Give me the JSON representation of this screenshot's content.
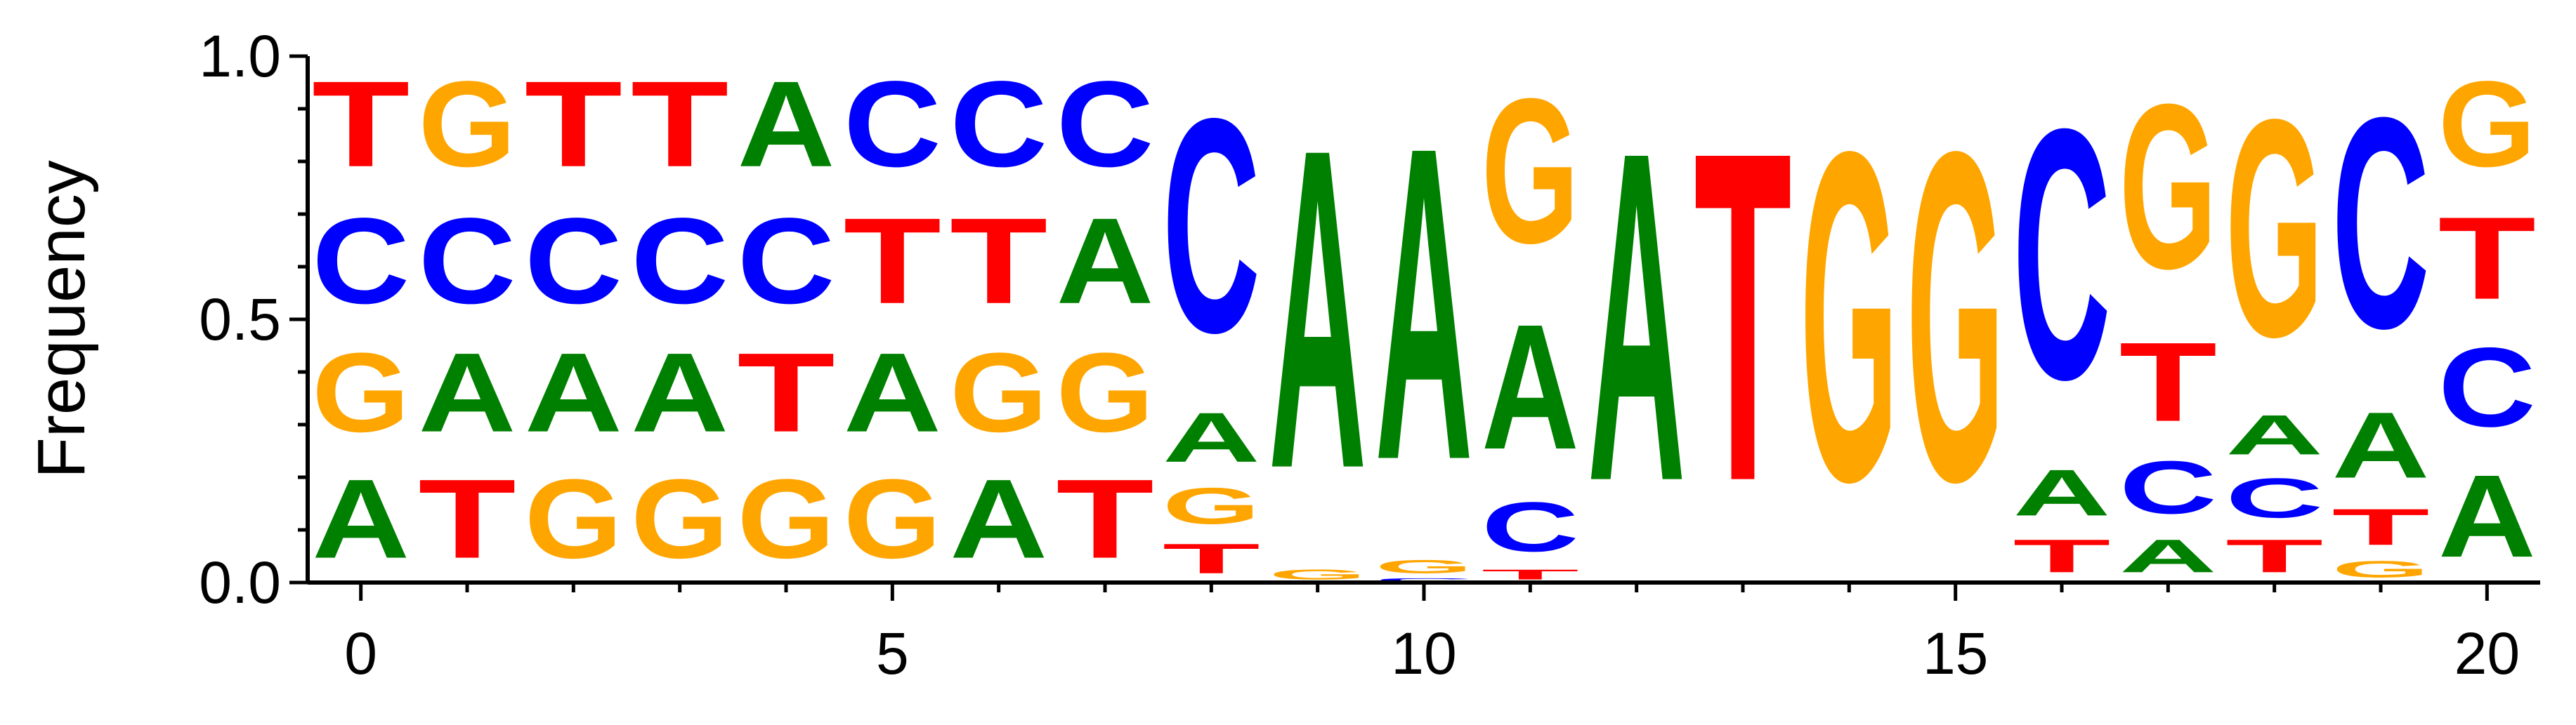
{
  "chart_data": {
    "type": "sequence_logo",
    "ylabel": "Frequency",
    "xlabel": "",
    "ylim": [
      0,
      1
    ],
    "xlim": [
      -0.5,
      20.5
    ],
    "y_ticks": [
      "0.0",
      "0.5",
      "1.0"
    ],
    "y_tick_values": [
      0,
      0.5,
      1
    ],
    "x_ticks": [
      "0",
      "5",
      "10",
      "15",
      "20"
    ],
    "x_tick_values": [
      0,
      5,
      10,
      15,
      20
    ],
    "colors": {
      "A": "#008000",
      "C": "#0000ff",
      "G": "#ffa500",
      "T": "#ff0000"
    },
    "positions": [
      {
        "pos": 0,
        "letters": [
          {
            "base": "A",
            "freq": 0.24
          },
          {
            "base": "G",
            "freq": 0.24
          },
          {
            "base": "C",
            "freq": 0.26
          },
          {
            "base": "T",
            "freq": 0.26
          }
        ]
      },
      {
        "pos": 1,
        "letters": [
          {
            "base": "T",
            "freq": 0.24
          },
          {
            "base": "A",
            "freq": 0.24
          },
          {
            "base": "C",
            "freq": 0.26
          },
          {
            "base": "G",
            "freq": 0.26
          }
        ]
      },
      {
        "pos": 2,
        "letters": [
          {
            "base": "G",
            "freq": 0.24
          },
          {
            "base": "A",
            "freq": 0.24
          },
          {
            "base": "C",
            "freq": 0.26
          },
          {
            "base": "T",
            "freq": 0.26
          }
        ]
      },
      {
        "pos": 3,
        "letters": [
          {
            "base": "G",
            "freq": 0.24
          },
          {
            "base": "A",
            "freq": 0.24
          },
          {
            "base": "C",
            "freq": 0.26
          },
          {
            "base": "T",
            "freq": 0.26
          }
        ]
      },
      {
        "pos": 4,
        "letters": [
          {
            "base": "G",
            "freq": 0.24
          },
          {
            "base": "T",
            "freq": 0.24
          },
          {
            "base": "C",
            "freq": 0.26
          },
          {
            "base": "A",
            "freq": 0.26
          }
        ]
      },
      {
        "pos": 5,
        "letters": [
          {
            "base": "G",
            "freq": 0.24
          },
          {
            "base": "A",
            "freq": 0.24
          },
          {
            "base": "T",
            "freq": 0.26
          },
          {
            "base": "C",
            "freq": 0.26
          }
        ]
      },
      {
        "pos": 6,
        "letters": [
          {
            "base": "A",
            "freq": 0.24
          },
          {
            "base": "G",
            "freq": 0.24
          },
          {
            "base": "T",
            "freq": 0.26
          },
          {
            "base": "C",
            "freq": 0.26
          }
        ]
      },
      {
        "pos": 7,
        "letters": [
          {
            "base": "T",
            "freq": 0.24
          },
          {
            "base": "G",
            "freq": 0.24
          },
          {
            "base": "A",
            "freq": 0.26
          },
          {
            "base": "C",
            "freq": 0.26
          }
        ]
      },
      {
        "pos": 8,
        "letters": [
          {
            "base": "T",
            "freq": 0.09
          },
          {
            "base": "G",
            "freq": 0.11
          },
          {
            "base": "A",
            "freq": 0.15
          },
          {
            "base": "C",
            "freq": 0.65
          }
        ]
      },
      {
        "pos": 9,
        "letters": [
          {
            "base": "G",
            "freq": 0.03
          },
          {
            "base": "A",
            "freq": 0.97
          }
        ]
      },
      {
        "pos": 10,
        "letters": [
          {
            "base": "C",
            "freq": 0.01
          },
          {
            "base": "G",
            "freq": 0.04
          },
          {
            "base": "A",
            "freq": 0.95
          }
        ]
      },
      {
        "pos": 11,
        "letters": [
          {
            "base": "T",
            "freq": 0.03
          },
          {
            "base": "C",
            "freq": 0.15
          },
          {
            "base": "A",
            "freq": 0.38
          },
          {
            "base": "G",
            "freq": 0.44
          }
        ]
      },
      {
        "pos": 12,
        "letters": [
          {
            "base": "A",
            "freq": 1.0
          }
        ]
      },
      {
        "pos": 13,
        "letters": [
          {
            "base": "T",
            "freq": 1.0
          }
        ]
      },
      {
        "pos": 14,
        "letters": [
          {
            "base": "G",
            "freq": 1.0
          }
        ]
      },
      {
        "pos": 15,
        "letters": [
          {
            "base": "G",
            "freq": 1.0
          }
        ]
      },
      {
        "pos": 16,
        "letters": [
          {
            "base": "T",
            "freq": 0.1
          },
          {
            "base": "A",
            "freq": 0.14
          },
          {
            "base": "C",
            "freq": 0.76
          }
        ]
      },
      {
        "pos": 17,
        "letters": [
          {
            "base": "A",
            "freq": 0.1
          },
          {
            "base": "C",
            "freq": 0.16
          },
          {
            "base": "T",
            "freq": 0.24
          },
          {
            "base": "G",
            "freq": 0.5
          }
        ]
      },
      {
        "pos": 18,
        "letters": [
          {
            "base": "T",
            "freq": 0.1
          },
          {
            "base": "C",
            "freq": 0.12
          },
          {
            "base": "A",
            "freq": 0.12
          },
          {
            "base": "G",
            "freq": 0.66
          }
        ]
      },
      {
        "pos": 19,
        "letters": [
          {
            "base": "G",
            "freq": 0.05
          },
          {
            "base": "T",
            "freq": 0.11
          },
          {
            "base": "A",
            "freq": 0.2
          },
          {
            "base": "C",
            "freq": 0.64
          }
        ]
      },
      {
        "pos": 20,
        "letters": [
          {
            "base": "A",
            "freq": 0.25
          },
          {
            "base": "C",
            "freq": 0.24
          },
          {
            "base": "T",
            "freq": 0.25
          },
          {
            "base": "G",
            "freq": 0.26
          }
        ]
      }
    ]
  }
}
